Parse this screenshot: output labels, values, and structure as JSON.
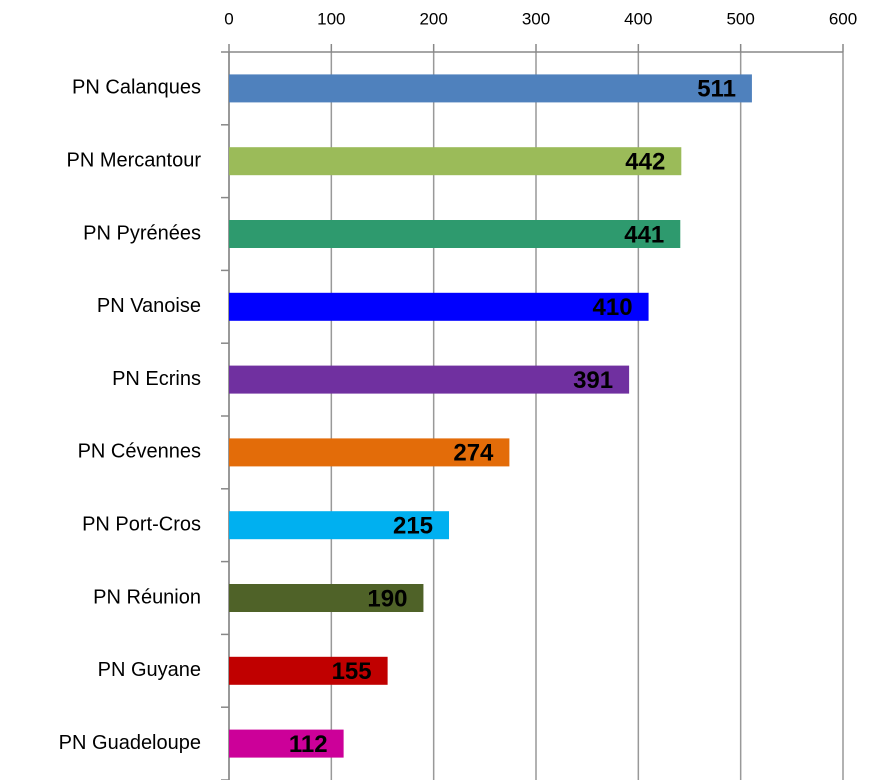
{
  "chart_data": {
    "type": "bar",
    "orientation": "horizontal",
    "categories": [
      "PN Calanques",
      "PN Mercantour",
      "PN Pyrénées",
      "PN Vanoise",
      "PN Ecrins",
      "PN Cévennes",
      "PN Port-Cros",
      "PN Réunion",
      "PN Guyane",
      "PN Guadeloupe"
    ],
    "values": [
      511,
      442,
      441,
      410,
      391,
      274,
      215,
      190,
      155,
      112
    ],
    "colors": [
      "#4f81bd",
      "#9bbb59",
      "#2e9a6e",
      "#0000ff",
      "#7030a0",
      "#e36c09",
      "#00b0f0",
      "#4f6228",
      "#c00000",
      "#cc0099"
    ],
    "xlim": [
      0,
      600
    ],
    "xticks": [
      0,
      100,
      200,
      300,
      400,
      500,
      600
    ],
    "grid": true
  }
}
